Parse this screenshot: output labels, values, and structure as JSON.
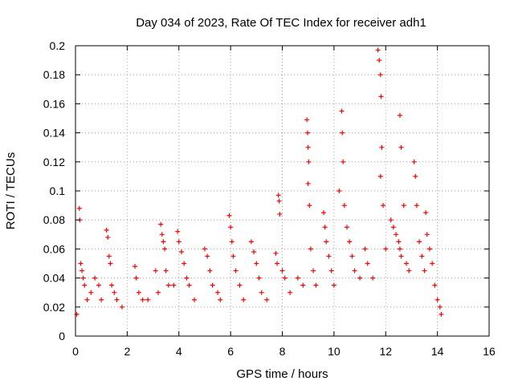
{
  "chart_data": {
    "type": "scatter",
    "title": "Day 034 of 2023, Rate Of TEC Index for receiver adh1",
    "xlabel": "GPS time / hours",
    "ylabel": "ROTI / TECUs",
    "xlim": [
      0,
      16
    ],
    "ylim": [
      0,
      0.2
    ],
    "xticks": [
      0,
      2,
      4,
      6,
      8,
      10,
      12,
      14,
      16
    ],
    "yticks": [
      0,
      0.02,
      0.04,
      0.06,
      0.08,
      0.1,
      0.12,
      0.14,
      0.16,
      0.18,
      0.2
    ],
    "grid": true,
    "marker": "+",
    "series": [
      {
        "color": "#ff0000",
        "values": [
          [
            0.05,
            0.015
          ],
          [
            0.15,
            0.088
          ],
          [
            0.17,
            0.08
          ],
          [
            0.2,
            0.05
          ],
          [
            0.25,
            0.045
          ],
          [
            0.3,
            0.04
          ],
          [
            0.35,
            0.035
          ],
          [
            0.45,
            0.025
          ],
          [
            0.6,
            0.03
          ],
          [
            0.75,
            0.04
          ],
          [
            0.9,
            0.035
          ],
          [
            1.0,
            0.025
          ],
          [
            1.2,
            0.073
          ],
          [
            1.25,
            0.068
          ],
          [
            1.3,
            0.055
          ],
          [
            1.35,
            0.05
          ],
          [
            1.4,
            0.035
          ],
          [
            1.5,
            0.03
          ],
          [
            1.6,
            0.025
          ],
          [
            1.8,
            0.02
          ],
          [
            2.3,
            0.048
          ],
          [
            2.35,
            0.04
          ],
          [
            2.45,
            0.03
          ],
          [
            2.6,
            0.025
          ],
          [
            2.8,
            0.025
          ],
          [
            3.1,
            0.045
          ],
          [
            3.2,
            0.03
          ],
          [
            3.3,
            0.077
          ],
          [
            3.35,
            0.07
          ],
          [
            3.4,
            0.065
          ],
          [
            3.45,
            0.06
          ],
          [
            3.5,
            0.045
          ],
          [
            3.6,
            0.035
          ],
          [
            3.8,
            0.035
          ],
          [
            3.95,
            0.072
          ],
          [
            4.0,
            0.065
          ],
          [
            4.1,
            0.058
          ],
          [
            4.2,
            0.05
          ],
          [
            4.3,
            0.04
          ],
          [
            4.4,
            0.035
          ],
          [
            4.6,
            0.025
          ],
          [
            5.0,
            0.06
          ],
          [
            5.1,
            0.055
          ],
          [
            5.2,
            0.045
          ],
          [
            5.3,
            0.035
          ],
          [
            5.5,
            0.03
          ],
          [
            5.6,
            0.025
          ],
          [
            5.95,
            0.083
          ],
          [
            6.0,
            0.075
          ],
          [
            6.05,
            0.065
          ],
          [
            6.1,
            0.055
          ],
          [
            6.2,
            0.045
          ],
          [
            6.35,
            0.035
          ],
          [
            6.5,
            0.025
          ],
          [
            6.8,
            0.065
          ],
          [
            6.9,
            0.058
          ],
          [
            7.0,
            0.05
          ],
          [
            7.1,
            0.04
          ],
          [
            7.2,
            0.03
          ],
          [
            7.4,
            0.025
          ],
          [
            7.75,
            0.057
          ],
          [
            7.8,
            0.05
          ],
          [
            7.85,
            0.097
          ],
          [
            7.88,
            0.093
          ],
          [
            7.9,
            0.084
          ],
          [
            8.0,
            0.045
          ],
          [
            8.1,
            0.04
          ],
          [
            8.3,
            0.03
          ],
          [
            8.6,
            0.04
          ],
          [
            8.8,
            0.035
          ],
          [
            8.95,
            0.149
          ],
          [
            8.98,
            0.14
          ],
          [
            9.0,
            0.13
          ],
          [
            9.02,
            0.12
          ],
          [
            9.0,
            0.105
          ],
          [
            9.05,
            0.09
          ],
          [
            9.1,
            0.06
          ],
          [
            9.2,
            0.045
          ],
          [
            9.3,
            0.035
          ],
          [
            9.6,
            0.085
          ],
          [
            9.65,
            0.075
          ],
          [
            9.7,
            0.065
          ],
          [
            9.8,
            0.055
          ],
          [
            9.9,
            0.045
          ],
          [
            10.0,
            0.035
          ],
          [
            10.2,
            0.1
          ],
          [
            10.3,
            0.155
          ],
          [
            10.32,
            0.14
          ],
          [
            10.35,
            0.12
          ],
          [
            10.4,
            0.09
          ],
          [
            10.5,
            0.075
          ],
          [
            10.6,
            0.065
          ],
          [
            10.7,
            0.055
          ],
          [
            10.8,
            0.045
          ],
          [
            11.0,
            0.04
          ],
          [
            11.2,
            0.06
          ],
          [
            11.3,
            0.05
          ],
          [
            11.5,
            0.04
          ],
          [
            11.7,
            0.197
          ],
          [
            11.75,
            0.19
          ],
          [
            11.8,
            0.18
          ],
          [
            11.82,
            0.165
          ],
          [
            11.85,
            0.13
          ],
          [
            11.8,
            0.11
          ],
          [
            11.9,
            0.09
          ],
          [
            12.0,
            0.06
          ],
          [
            12.2,
            0.08
          ],
          [
            12.3,
            0.075
          ],
          [
            12.4,
            0.07
          ],
          [
            12.5,
            0.065
          ],
          [
            12.55,
            0.06
          ],
          [
            12.6,
            0.055
          ],
          [
            12.55,
            0.152
          ],
          [
            12.6,
            0.13
          ],
          [
            12.7,
            0.09
          ],
          [
            12.8,
            0.05
          ],
          [
            12.9,
            0.045
          ],
          [
            13.1,
            0.12
          ],
          [
            13.15,
            0.11
          ],
          [
            13.2,
            0.09
          ],
          [
            13.3,
            0.065
          ],
          [
            13.4,
            0.055
          ],
          [
            13.5,
            0.045
          ],
          [
            13.55,
            0.085
          ],
          [
            13.6,
            0.07
          ],
          [
            13.7,
            0.06
          ],
          [
            13.8,
            0.05
          ],
          [
            13.9,
            0.035
          ],
          [
            14.0,
            0.025
          ],
          [
            14.1,
            0.02
          ],
          [
            14.15,
            0.015
          ]
        ]
      }
    ]
  }
}
